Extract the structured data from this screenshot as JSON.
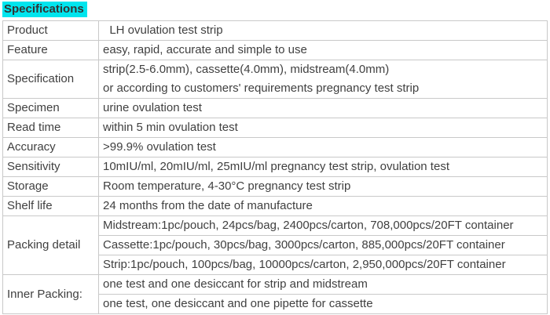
{
  "title": "Specifications",
  "colors": {
    "highlight": "#00e5ee",
    "border": "#c9c9c9",
    "text": "#404040"
  },
  "table": {
    "rows": [
      {
        "label": "Product",
        "cells": [
          "  LH ovulation test strip"
        ]
      },
      {
        "label": "Feature",
        "cells": [
          "easy, rapid, accurate and simple to use"
        ]
      },
      {
        "label": "Specification",
        "cells": [
          "strip(2.5-6.0mm), cassette(4.0mm), midstream(4.0mm)\nor according to customers' requirements pregnancy test strip"
        ]
      },
      {
        "label": "Specimen",
        "cells": [
          "urine ovulation test"
        ]
      },
      {
        "label": "Read time",
        "cells": [
          "within 5 min ovulation test"
        ]
      },
      {
        "label": "Accuracy",
        "cells": [
          ">99.9% ovulation test"
        ]
      },
      {
        "label": "Sensitivity",
        "cells": [
          "10mIU/ml, 20mIU/ml, 25mIU/ml pregnancy test strip, ovulation test"
        ]
      },
      {
        "label": "Storage",
        "cells": [
          "Room temperature, 4-30°C pregnancy test strip"
        ]
      },
      {
        "label": "Shelf life",
        "cells": [
          "24 months from the date of manufacture"
        ]
      },
      {
        "label": "Packing detail",
        "cells": [
          "Midstream:1pc/pouch, 24pcs/bag, 2400pcs/carton, 708,000pcs/20FT container",
          "Cassette:1pc/pouch, 30pcs/bag, 3000pcs/carton, 885,000pcs/20FT container",
          "Strip:1pc/pouch, 100pcs/bag, 10000pcs/carton, 2,950,000pcs/20FT container"
        ]
      },
      {
        "label": "Inner Packing:",
        "cells": [
          "one test and one desiccant for strip and midstream",
          "one test, one desiccant and one pipette for cassette"
        ]
      }
    ]
  }
}
